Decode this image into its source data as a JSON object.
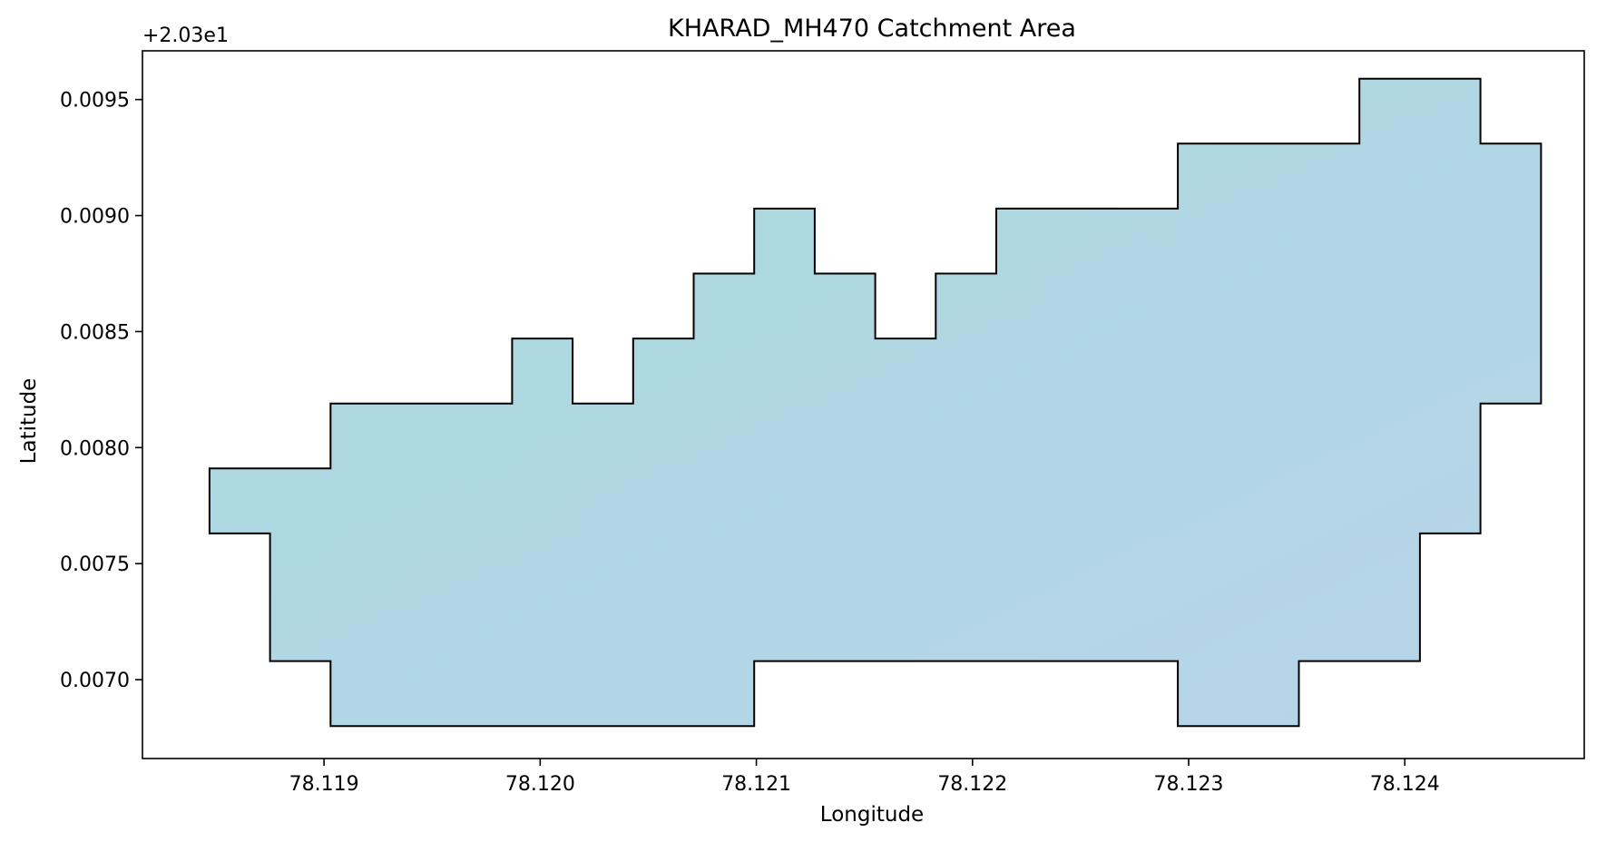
{
  "chart_data": {
    "type": "area",
    "title": "KHARAD_MH470 Catchment Area",
    "xlabel": "Longitude",
    "ylabel": "Latitude",
    "y_offset_label": "+2.03e1",
    "x_ticks": [
      "78.119",
      "78.120",
      "78.121",
      "78.122",
      "78.123",
      "78.124"
    ],
    "x_tick_values": [
      78.119,
      78.12,
      78.121,
      78.122,
      78.123,
      78.124
    ],
    "y_ticks": [
      "0.0070",
      "0.0075",
      "0.0080",
      "0.0085",
      "0.0090",
      "0.0095"
    ],
    "y_tick_values": [
      0.007,
      0.0075,
      0.008,
      0.0085,
      0.009,
      0.0095
    ],
    "xlim": [
      78.11816,
      78.12483
    ],
    "ylim": [
      0.00666,
      0.00971
    ],
    "grid": false,
    "legend": "none",
    "fill_gradient": [
      "#a8dadc",
      "#b8d4ea"
    ],
    "edge_color": "#000000",
    "polygon": [
      [
        78.11847,
        0.00791
      ],
      [
        78.11903,
        0.00791
      ],
      [
        78.11903,
        0.00819
      ],
      [
        78.11987,
        0.00819
      ],
      [
        78.11987,
        0.00847
      ],
      [
        78.12015,
        0.00847
      ],
      [
        78.12015,
        0.00819
      ],
      [
        78.12043,
        0.00819
      ],
      [
        78.12043,
        0.00847
      ],
      [
        78.12071,
        0.00847
      ],
      [
        78.12071,
        0.00875
      ],
      [
        78.12099,
        0.00875
      ],
      [
        78.12099,
        0.00903
      ],
      [
        78.12127,
        0.00903
      ],
      [
        78.12127,
        0.00875
      ],
      [
        78.12155,
        0.00875
      ],
      [
        78.12155,
        0.00847
      ],
      [
        78.12183,
        0.00847
      ],
      [
        78.12183,
        0.00875
      ],
      [
        78.12211,
        0.00875
      ],
      [
        78.12211,
        0.00903
      ],
      [
        78.12295,
        0.00903
      ],
      [
        78.12295,
        0.00931
      ],
      [
        78.12379,
        0.00931
      ],
      [
        78.12379,
        0.00959
      ],
      [
        78.12435,
        0.00959
      ],
      [
        78.12435,
        0.00931
      ],
      [
        78.12463,
        0.00931
      ],
      [
        78.12463,
        0.00819
      ],
      [
        78.12435,
        0.00819
      ],
      [
        78.12435,
        0.00763
      ],
      [
        78.12407,
        0.00763
      ],
      [
        78.12407,
        0.00708
      ],
      [
        78.12351,
        0.00708
      ],
      [
        78.12351,
        0.0068
      ],
      [
        78.12295,
        0.0068
      ],
      [
        78.12295,
        0.00708
      ],
      [
        78.12099,
        0.00708
      ],
      [
        78.12099,
        0.0068
      ],
      [
        78.11903,
        0.0068
      ],
      [
        78.11903,
        0.00708
      ],
      [
        78.11875,
        0.00708
      ],
      [
        78.11875,
        0.00763
      ],
      [
        78.11847,
        0.00763
      ]
    ]
  }
}
